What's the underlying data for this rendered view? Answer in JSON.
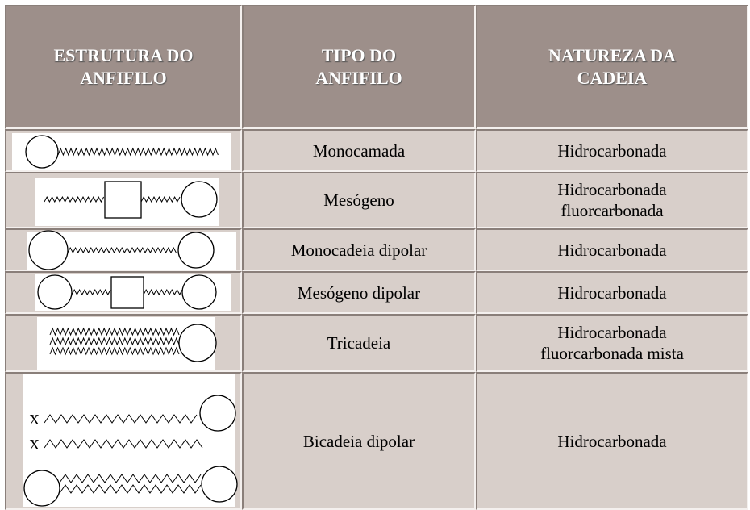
{
  "table": {
    "headers": [
      "ESTRUTURA DO\nANFIFILO",
      "TIPO DO\nANFIFILO",
      "NATUREZA DA\nCADEIA"
    ],
    "rows": [
      {
        "type": "Monocamada",
        "nature": "Hidrocarbonada"
      },
      {
        "type": "Mesógeno",
        "nature": "Hidrocarbonada\nfluorcarbonada"
      },
      {
        "type": "Monocadeia dipolar",
        "nature": "Hidrocarbonada"
      },
      {
        "type": "Mesógeno dipolar",
        "nature": "Hidrocarbonada"
      },
      {
        "type": "Tricadeia",
        "nature": "Hidrocarbonada\nfluorcarbonada mista"
      },
      {
        "type": "Bicadeia dipolar",
        "nature": "Hidrocarbonada",
        "structure_labels": [
          "X",
          "X"
        ]
      }
    ]
  }
}
